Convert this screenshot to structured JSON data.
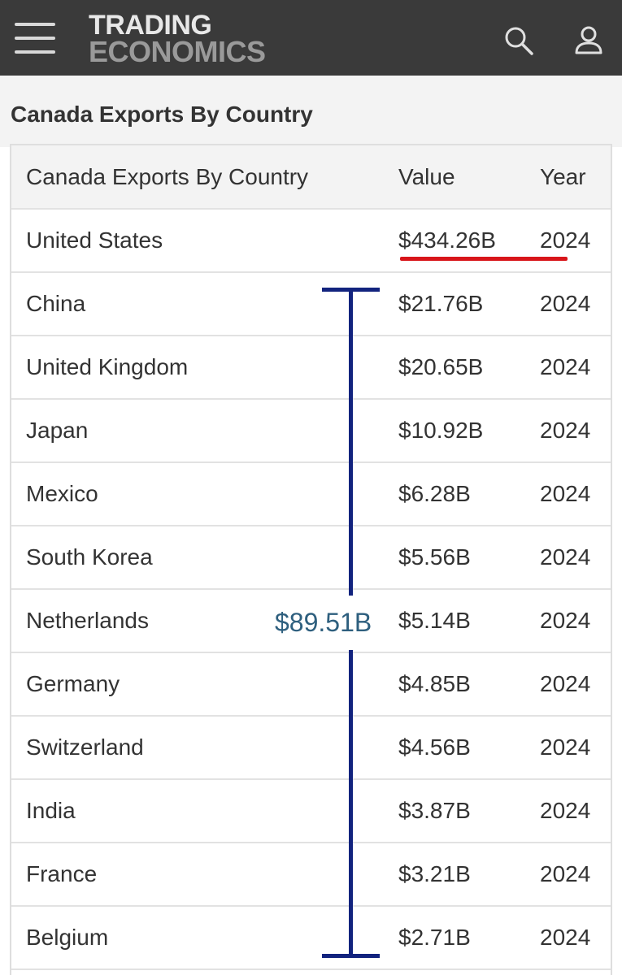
{
  "header": {
    "logo_line1": "TRADING",
    "logo_line2": "ECONOMICS",
    "icons": [
      "menu-icon",
      "search-icon",
      "user-icon"
    ]
  },
  "page": {
    "title": "Canada Exports By Country"
  },
  "table": {
    "columns": [
      "Canada Exports By Country",
      "Value",
      "Year"
    ],
    "rows": [
      {
        "country": "United States",
        "value": "$434.26B",
        "year": "2024"
      },
      {
        "country": "China",
        "value": "$21.76B",
        "year": "2024"
      },
      {
        "country": "United Kingdom",
        "value": "$20.65B",
        "year": "2024"
      },
      {
        "country": "Japan",
        "value": "$10.92B",
        "year": "2024"
      },
      {
        "country": "Mexico",
        "value": "$6.28B",
        "year": "2024"
      },
      {
        "country": "South Korea",
        "value": "$5.56B",
        "year": "2024"
      },
      {
        "country": "Netherlands",
        "value": "$5.14B",
        "year": "2024"
      },
      {
        "country": "Germany",
        "value": "$4.85B",
        "year": "2024"
      },
      {
        "country": "Switzerland",
        "value": "$4.56B",
        "year": "2024"
      },
      {
        "country": "India",
        "value": "$3.87B",
        "year": "2024"
      },
      {
        "country": "France",
        "value": "$3.21B",
        "year": "2024"
      },
      {
        "country": "Belgium",
        "value": "$2.71B",
        "year": "2024"
      }
    ]
  },
  "annotations": {
    "bracket_total": "$89.51B",
    "underline_color": "#d8151a",
    "bracket_color": "#12237e"
  }
}
